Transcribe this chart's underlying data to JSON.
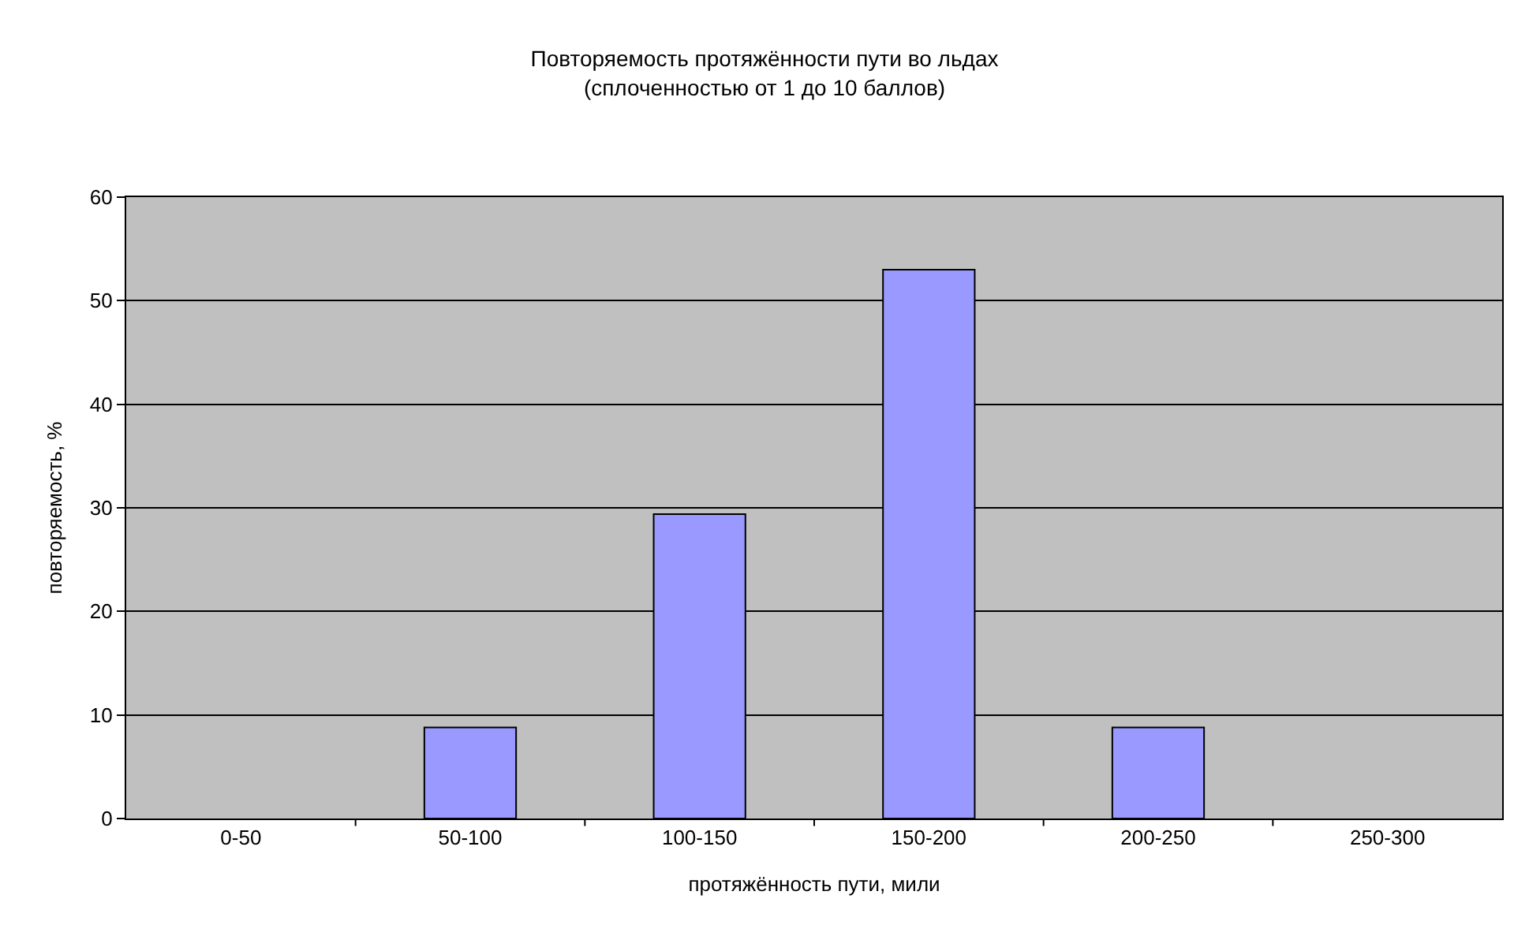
{
  "chart_data": {
    "type": "bar",
    "title": "Повторяемость протяжённости пути во льдах\n(сплоченностью от 1 до 10 баллов)",
    "xlabel": "протяжённость пути, мили",
    "ylabel": "повторяемость, %",
    "categories": [
      "0-50",
      "50-100",
      "100-150",
      "150-200",
      "200-250",
      "250-300"
    ],
    "values": [
      0,
      8.8,
      29.4,
      53,
      8.8,
      0
    ],
    "color": "#9999ff",
    "ylim": [
      0,
      60
    ],
    "yticks": [
      0,
      10,
      20,
      30,
      40,
      50,
      60
    ],
    "grid": "y",
    "legend": false
  }
}
